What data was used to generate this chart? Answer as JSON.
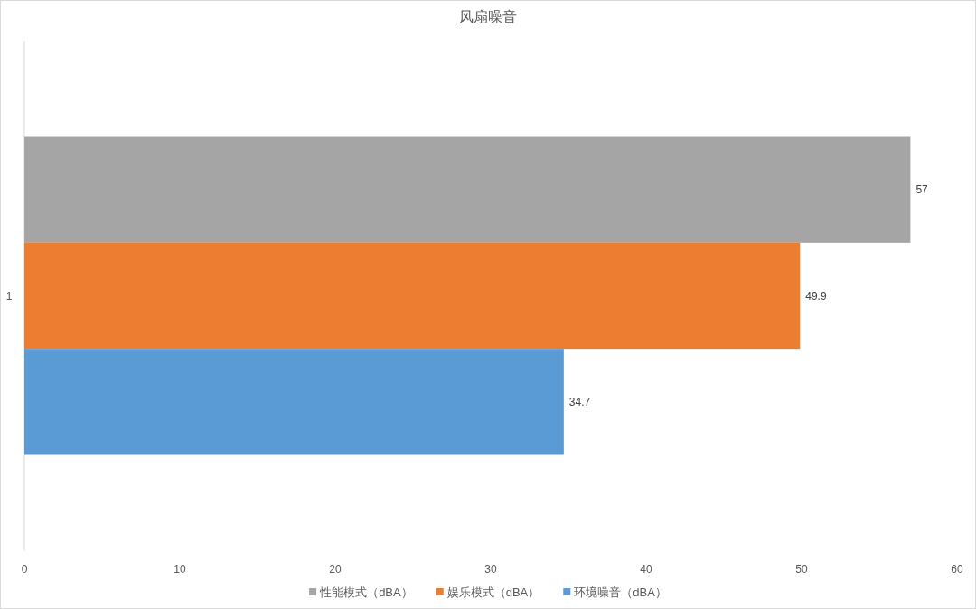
{
  "chart_data": {
    "type": "bar",
    "orientation": "horizontal",
    "title": "风扇噪音",
    "categories": [
      "1"
    ],
    "series": [
      {
        "name": "性能模式（dBA）",
        "color": "#a5a5a5",
        "values": [
          57
        ]
      },
      {
        "name": "娱乐模式（dBA）",
        "color": "#ed7d31",
        "values": [
          49.9
        ]
      },
      {
        "name": "环境噪音（dBA）",
        "color": "#5b9bd5",
        "values": [
          34.7
        ]
      }
    ],
    "xlim": [
      0,
      60
    ],
    "xticks": [
      0,
      10,
      20,
      30,
      40,
      50,
      60
    ],
    "data_labels": true,
    "legend": "bottom",
    "grid": false
  }
}
